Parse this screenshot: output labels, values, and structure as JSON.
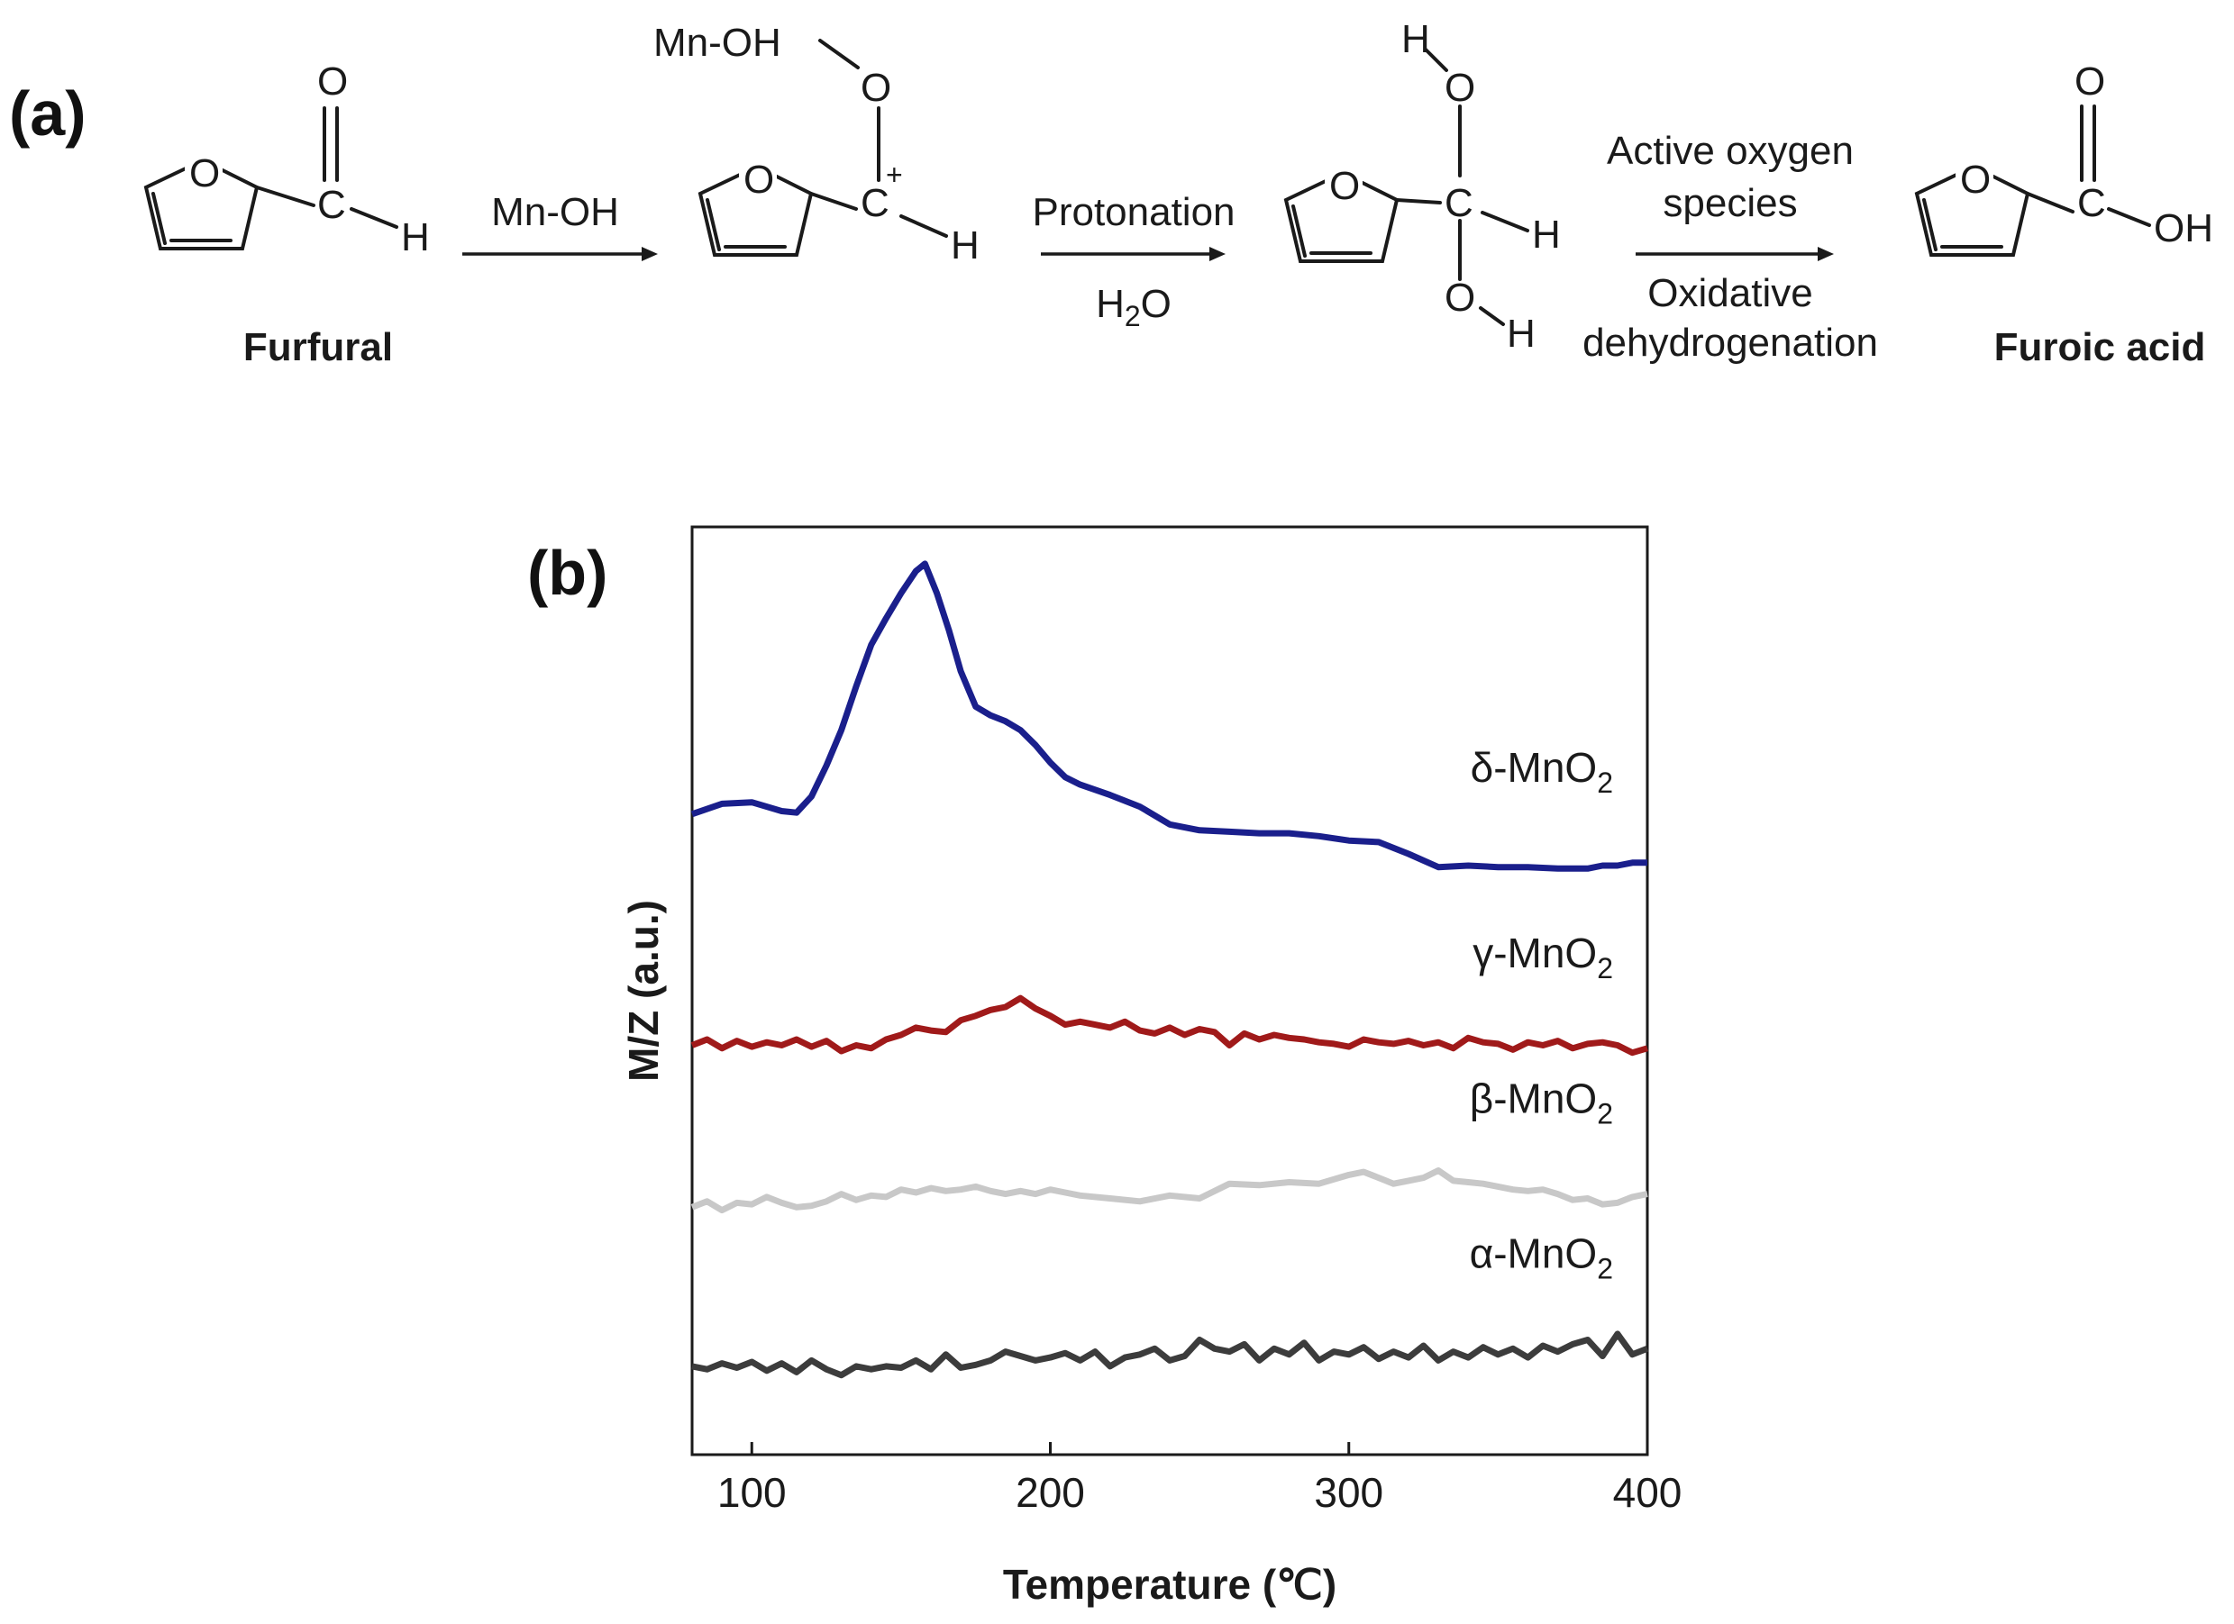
{
  "panel_a": {
    "label": "(a)",
    "furfural": "Furfural",
    "furoic_acid": "Furoic acid",
    "step1": {
      "reagent": "Mn-OH"
    },
    "step2": {
      "top": "Protonation",
      "bottom_main": "H",
      "bottom_sub": "2",
      "bottom_tail": "O"
    },
    "step3": {
      "top_line1": "Active oxygen",
      "top_line2": "species",
      "bottom_line1": "Oxidative",
      "bottom_line2": "dehydrogenation"
    },
    "atoms": {
      "O": "O",
      "C": "C",
      "H": "H",
      "OH": "OH",
      "plus": "+",
      "mnoh": "Mn-OH"
    }
  },
  "panel_b": {
    "label": "(b)"
  },
  "chart_data": {
    "type": "line",
    "xlabel": "Temperature (℃)",
    "ylabel": "M/Z (a.u.)",
    "xlim": [
      80,
      400
    ],
    "xticks": [
      "100",
      "200",
      "300",
      "400"
    ],
    "y_units": "arbitrary (offset traces)",
    "grid": false,
    "colors": {
      "delta": "#1a1f8c",
      "gamma": "#a01a1a",
      "beta": "#c8c8c8",
      "alpha": "#3c3c3c"
    },
    "series": [
      {
        "name": "δ-MnO",
        "name_sub": "2",
        "key": "delta",
        "x": [
          80,
          90,
          100,
          110,
          115,
          120,
          125,
          130,
          135,
          140,
          145,
          150,
          155,
          158,
          162,
          166,
          170,
          175,
          180,
          185,
          190,
          195,
          200,
          205,
          210,
          220,
          230,
          240,
          250,
          260,
          270,
          280,
          290,
          300,
          310,
          320,
          330,
          340,
          350,
          360,
          370,
          380,
          385,
          390,
          395,
          400
        ],
        "y": [
          3.05,
          3.12,
          3.13,
          3.07,
          3.06,
          3.17,
          3.38,
          3.62,
          3.92,
          4.2,
          4.38,
          4.55,
          4.7,
          4.75,
          4.55,
          4.3,
          4.02,
          3.78,
          3.72,
          3.68,
          3.62,
          3.52,
          3.4,
          3.3,
          3.25,
          3.18,
          3.1,
          2.98,
          2.94,
          2.93,
          2.92,
          2.92,
          2.9,
          2.87,
          2.86,
          2.78,
          2.69,
          2.7,
          2.69,
          2.69,
          2.68,
          2.68,
          2.7,
          2.7,
          2.72,
          2.72
        ]
      },
      {
        "name": "γ-MnO",
        "name_sub": "2",
        "key": "gamma",
        "x": [
          80,
          85,
          90,
          95,
          100,
          105,
          110,
          115,
          120,
          125,
          130,
          135,
          140,
          145,
          150,
          155,
          160,
          165,
          170,
          175,
          180,
          185,
          190,
          195,
          200,
          205,
          210,
          215,
          220,
          225,
          230,
          235,
          240,
          245,
          250,
          255,
          260,
          265,
          270,
          275,
          280,
          285,
          290,
          295,
          300,
          305,
          310,
          315,
          320,
          325,
          330,
          335,
          340,
          345,
          350,
          355,
          360,
          365,
          370,
          375,
          380,
          385,
          390,
          395,
          400
        ],
        "y": [
          1.48,
          1.52,
          1.46,
          1.51,
          1.47,
          1.5,
          1.48,
          1.52,
          1.47,
          1.51,
          1.44,
          1.48,
          1.46,
          1.52,
          1.55,
          1.6,
          1.58,
          1.57,
          1.65,
          1.68,
          1.72,
          1.74,
          1.8,
          1.73,
          1.68,
          1.62,
          1.64,
          1.62,
          1.6,
          1.64,
          1.58,
          1.56,
          1.6,
          1.55,
          1.59,
          1.57,
          1.48,
          1.56,
          1.52,
          1.55,
          1.53,
          1.52,
          1.5,
          1.49,
          1.47,
          1.52,
          1.5,
          1.49,
          1.51,
          1.48,
          1.5,
          1.46,
          1.53,
          1.5,
          1.49,
          1.45,
          1.5,
          1.48,
          1.51,
          1.46,
          1.49,
          1.5,
          1.48,
          1.43,
          1.46
        ]
      },
      {
        "name": "β-MnO",
        "name_sub": "2",
        "key": "beta",
        "x": [
          80,
          85,
          90,
          95,
          100,
          105,
          110,
          115,
          120,
          125,
          130,
          135,
          140,
          145,
          150,
          155,
          160,
          165,
          170,
          175,
          180,
          185,
          190,
          195,
          200,
          205,
          210,
          220,
          230,
          240,
          250,
          260,
          270,
          280,
          290,
          300,
          305,
          310,
          315,
          320,
          325,
          330,
          335,
          340,
          345,
          350,
          355,
          360,
          365,
          370,
          375,
          380,
          385,
          390,
          395,
          400
        ],
        "y": [
          0.38,
          0.42,
          0.36,
          0.41,
          0.4,
          0.45,
          0.41,
          0.38,
          0.39,
          0.42,
          0.47,
          0.43,
          0.46,
          0.45,
          0.5,
          0.48,
          0.51,
          0.49,
          0.5,
          0.52,
          0.49,
          0.47,
          0.49,
          0.47,
          0.5,
          0.48,
          0.46,
          0.44,
          0.42,
          0.46,
          0.44,
          0.54,
          0.53,
          0.55,
          0.54,
          0.6,
          0.62,
          0.58,
          0.54,
          0.56,
          0.58,
          0.63,
          0.56,
          0.55,
          0.54,
          0.52,
          0.5,
          0.49,
          0.5,
          0.47,
          0.43,
          0.44,
          0.4,
          0.41,
          0.45,
          0.47
        ]
      },
      {
        "name": "α-MnO",
        "name_sub": "2",
        "key": "alpha",
        "x": [
          80,
          85,
          90,
          95,
          100,
          105,
          110,
          115,
          120,
          125,
          130,
          135,
          140,
          145,
          150,
          155,
          160,
          165,
          170,
          175,
          180,
          185,
          190,
          195,
          200,
          205,
          210,
          215,
          220,
          225,
          230,
          235,
          240,
          245,
          250,
          255,
          260,
          265,
          270,
          275,
          280,
          285,
          290,
          295,
          300,
          305,
          310,
          315,
          320,
          325,
          330,
          335,
          340,
          345,
          350,
          355,
          360,
          365,
          370,
          375,
          380,
          385,
          390,
          395,
          400
        ],
        "y": [
          -0.7,
          -0.72,
          -0.68,
          -0.71,
          -0.67,
          -0.73,
          -0.68,
          -0.74,
          -0.66,
          -0.72,
          -0.76,
          -0.7,
          -0.72,
          -0.7,
          -0.71,
          -0.66,
          -0.72,
          -0.62,
          -0.71,
          -0.69,
          -0.66,
          -0.6,
          -0.63,
          -0.66,
          -0.64,
          -0.61,
          -0.66,
          -0.6,
          -0.7,
          -0.64,
          -0.62,
          -0.58,
          -0.66,
          -0.63,
          -0.52,
          -0.58,
          -0.6,
          -0.55,
          -0.66,
          -0.58,
          -0.62,
          -0.54,
          -0.66,
          -0.6,
          -0.62,
          -0.57,
          -0.65,
          -0.6,
          -0.64,
          -0.56,
          -0.66,
          -0.6,
          -0.64,
          -0.57,
          -0.62,
          -0.58,
          -0.64,
          -0.56,
          -0.6,
          -0.55,
          -0.52,
          -0.63,
          -0.48,
          -0.62,
          -0.58
        ]
      }
    ]
  }
}
